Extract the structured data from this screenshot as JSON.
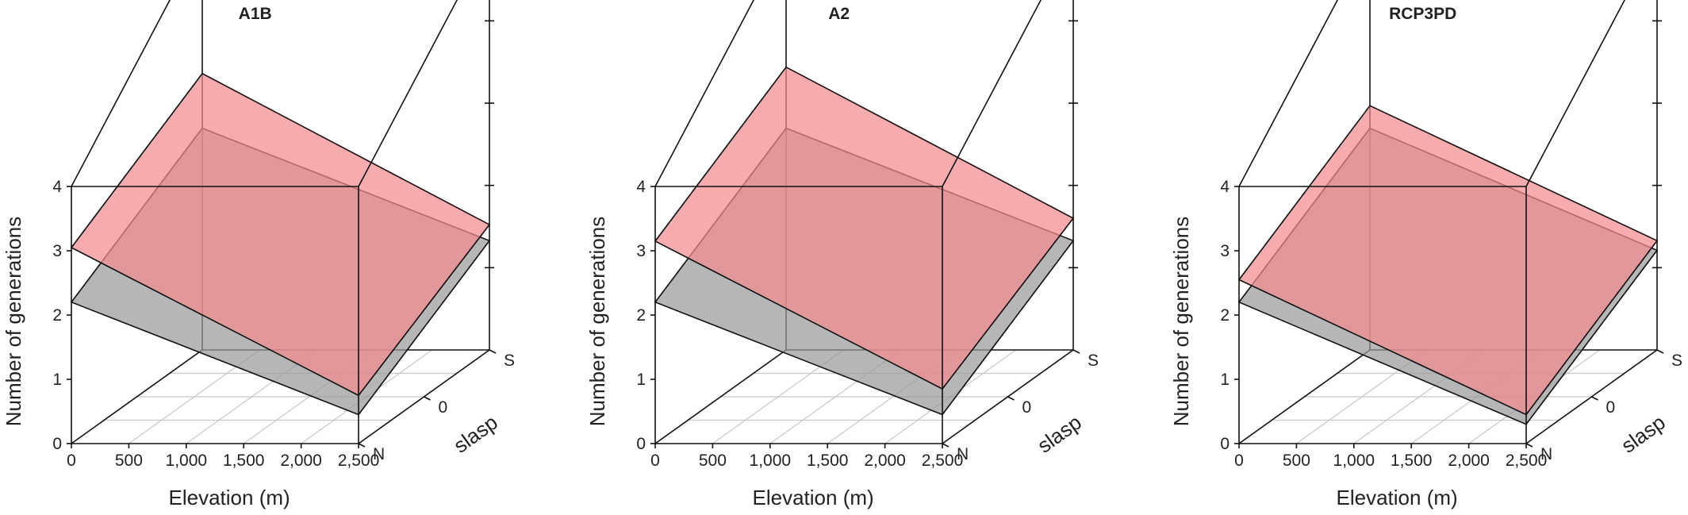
{
  "colors": {
    "surface_upper": "#f28b8f",
    "surface_lower": "#9a9a9a",
    "box_line": "#111111",
    "grid_line": "#c8c8c8"
  },
  "chart_data": [
    {
      "type": "surface3d",
      "title": "A1B",
      "xlabel": "Elevation (m)",
      "ylabel": "slasp",
      "zlabel": "Number of generations",
      "x_ticks": [
        "0",
        "500",
        "1,000",
        "1,500",
        "2,000",
        "2,500"
      ],
      "y_ticks": [
        "N",
        "0",
        "S"
      ],
      "z_ticks": [
        "0",
        "1",
        "2",
        "3",
        "4"
      ],
      "xlim": [
        0,
        2500
      ],
      "zlim": [
        0,
        4
      ],
      "series": [
        {
          "corners": {
            "x0_N": 3.05,
            "x0_S": 4.3,
            "x2500_N": 0.75,
            "x2500_S": 1.95
          }
        },
        {
          "corners": {
            "x0_N": 2.2,
            "x0_S": 3.45,
            "x2500_N": 0.45,
            "x2500_S": 1.7
          }
        }
      ]
    },
    {
      "type": "surface3d",
      "title": "A2",
      "xlabel": "Elevation (m)",
      "ylabel": "slasp",
      "zlabel": "Number of generations",
      "x_ticks": [
        "0",
        "500",
        "1,000",
        "1,500",
        "2,000",
        "2,500"
      ],
      "y_ticks": [
        "N",
        "0",
        "S"
      ],
      "z_ticks": [
        "0",
        "1",
        "2",
        "3",
        "4"
      ],
      "xlim": [
        0,
        2500
      ],
      "zlim": [
        0,
        4
      ],
      "series": [
        {
          "corners": {
            "x0_N": 3.15,
            "x0_S": 4.4,
            "x2500_N": 0.85,
            "x2500_S": 2.05
          }
        },
        {
          "corners": {
            "x0_N": 2.2,
            "x0_S": 3.45,
            "x2500_N": 0.45,
            "x2500_S": 1.7
          }
        }
      ]
    },
    {
      "type": "surface3d",
      "title": "RCP3PD",
      "xlabel": "Elevation (m)",
      "ylabel": "slasp",
      "zlabel": "Number of generations",
      "x_ticks": [
        "0",
        "500",
        "1,000",
        "1,500",
        "2,000",
        "2,500"
      ],
      "y_ticks": [
        "N",
        "0",
        "S"
      ],
      "z_ticks": [
        "0",
        "1",
        "2",
        "3",
        "4"
      ],
      "xlim": [
        0,
        2500
      ],
      "zlim": [
        0,
        4
      ],
      "series": [
        {
          "corners": {
            "x0_N": 2.55,
            "x0_S": 3.8,
            "x2500_N": 0.45,
            "x2500_S": 1.7
          }
        },
        {
          "corners": {
            "x0_N": 2.2,
            "x0_S": 3.45,
            "x2500_N": 0.3,
            "x2500_S": 1.55
          }
        }
      ]
    }
  ]
}
